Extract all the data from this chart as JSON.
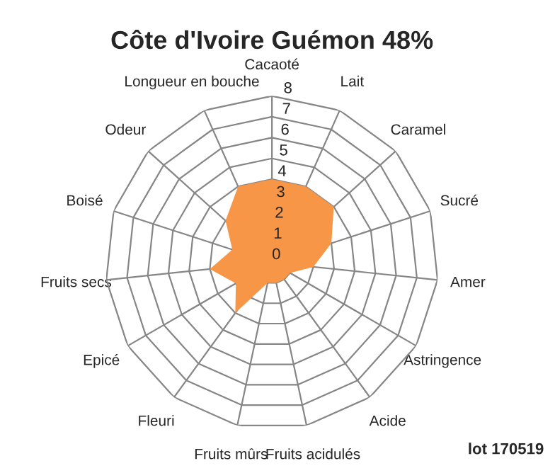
{
  "chart_data": {
    "type": "radar",
    "title": "Côte d'Ivoire Guémon 48%",
    "categories": [
      "Cacaoté",
      "Lait",
      "Caramel",
      "Sucré",
      "Amer",
      "Astringence",
      "Acide",
      "Fruits acidulés",
      "Fruits mûrs",
      "Fleuri",
      "Epicé",
      "Fruits secs",
      "Boisé",
      "Odeur",
      "Longueur en bouche"
    ],
    "series": [
      {
        "color": "#f79646",
        "values": [
          4,
          4,
          4,
          3,
          2,
          1,
          1,
          1,
          1,
          3,
          2,
          3,
          2,
          3,
          4
        ]
      }
    ],
    "ylim": [
      0,
      8
    ],
    "yticks": [
      0,
      1,
      2,
      3,
      4,
      5,
      6,
      7,
      8
    ],
    "grid": true,
    "annotations": [
      "lot 170519"
    ]
  }
}
